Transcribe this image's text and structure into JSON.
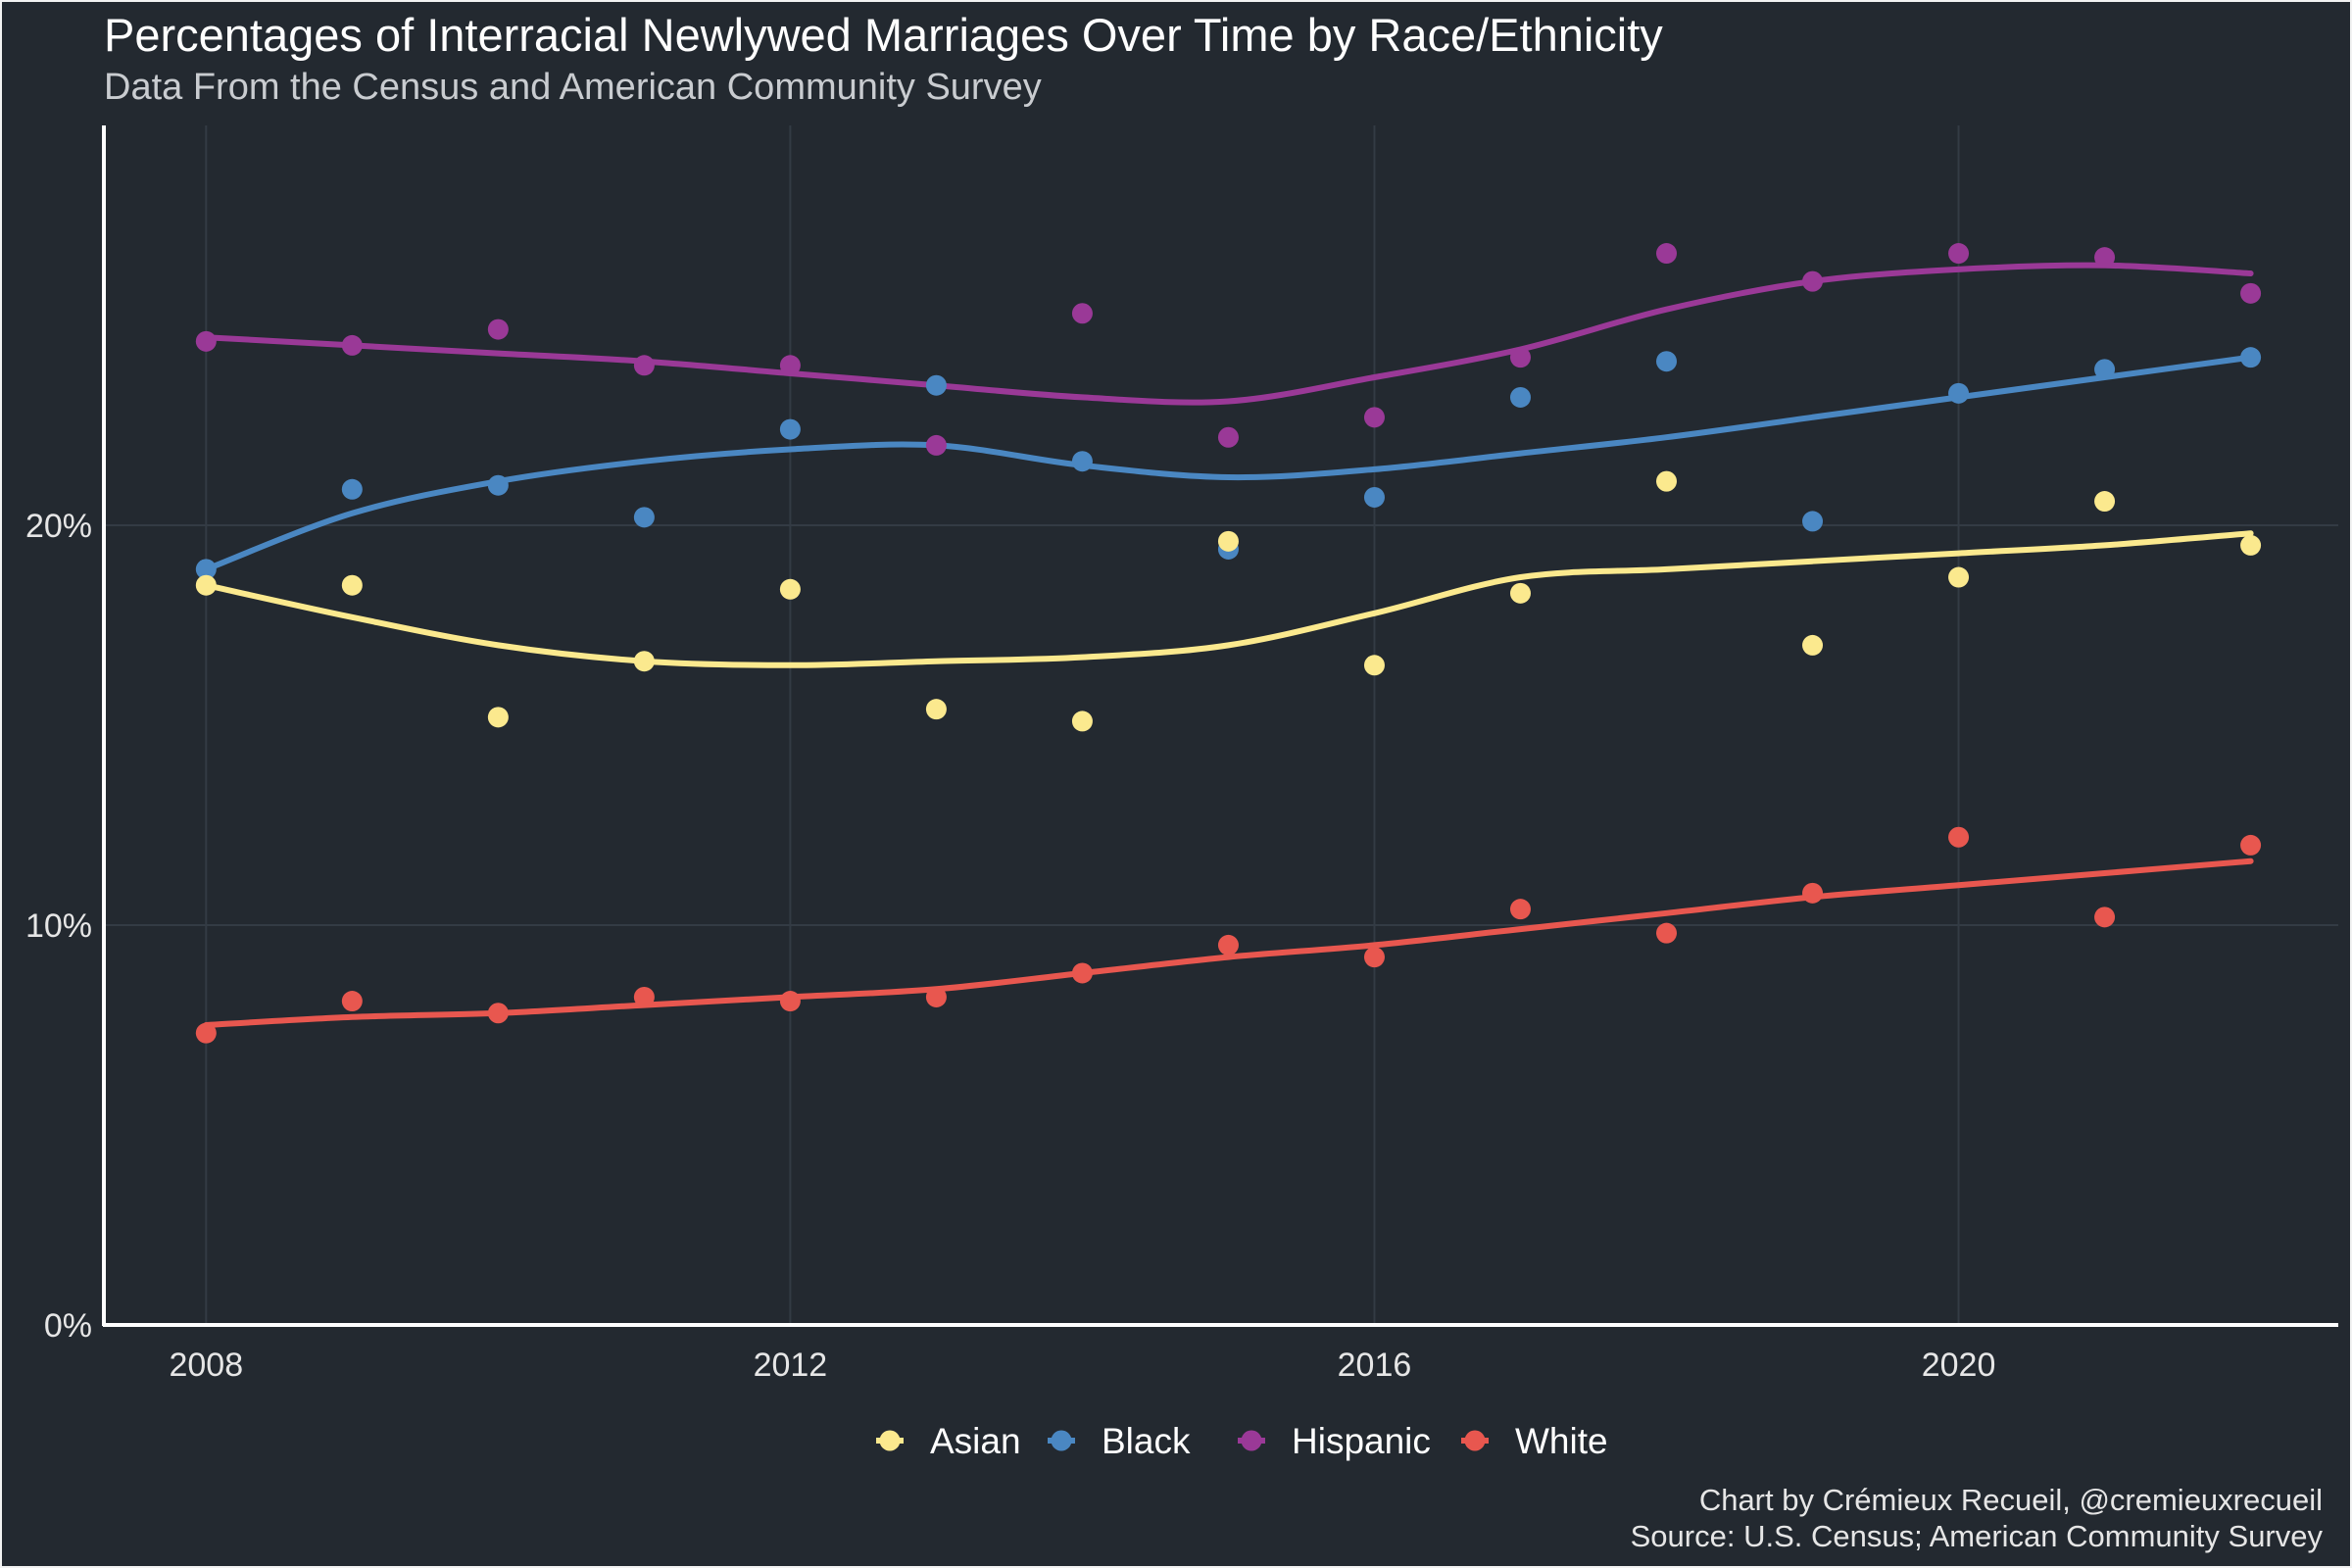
{
  "chart_data": {
    "type": "scatter",
    "title": "Percentages of Interracial Newlywed Marriages Over Time by Race/Ethnicity",
    "subtitle": "Data From the Census and American Community Survey",
    "xlabel": "",
    "ylabel": "",
    "xlim": [
      2007.3,
      2022.6
    ],
    "ylim": [
      0,
      30
    ],
    "x_ticks": [
      2008,
      2012,
      2016,
      2020
    ],
    "y_ticks": [
      0,
      10,
      20
    ],
    "y_tick_labels": [
      "0%",
      "10%",
      "20%"
    ],
    "grid": true,
    "legend_position": "bottom",
    "x": [
      2008,
      2009,
      2010,
      2011,
      2012,
      2013,
      2014,
      2015,
      2016,
      2017,
      2018,
      2019,
      2020,
      2021,
      2022
    ],
    "series": [
      {
        "name": "Asian",
        "color": "#fbe98e",
        "values": [
          18.5,
          18.5,
          15.2,
          16.6,
          18.4,
          15.4,
          15.1,
          19.6,
          16.5,
          18.3,
          21.1,
          17.0,
          18.7,
          20.6,
          19.5
        ],
        "trend": [
          18.5,
          17.7,
          17.0,
          16.6,
          16.5,
          16.6,
          16.7,
          17.0,
          17.8,
          18.7,
          18.9,
          19.1,
          19.3,
          19.5,
          19.8
        ]
      },
      {
        "name": "Black",
        "color": "#4a87c2",
        "values": [
          18.9,
          20.9,
          21.0,
          20.2,
          22.4,
          23.5,
          21.6,
          19.4,
          20.7,
          23.2,
          24.1,
          20.1,
          23.3,
          23.9,
          24.2
        ],
        "trend": [
          18.9,
          20.3,
          21.1,
          21.6,
          21.9,
          22.0,
          21.5,
          21.2,
          21.4,
          21.8,
          22.2,
          22.7,
          23.2,
          23.7,
          24.2
        ]
      },
      {
        "name": "Hispanic",
        "color": "#9a3997",
        "values": [
          24.6,
          24.5,
          24.9,
          24.0,
          24.0,
          22.0,
          25.3,
          22.2,
          22.7,
          24.2,
          26.8,
          26.1,
          26.8,
          26.7,
          25.8
        ],
        "trend": [
          24.7,
          24.5,
          24.3,
          24.1,
          23.8,
          23.5,
          23.2,
          23.1,
          23.7,
          24.4,
          25.4,
          26.1,
          26.4,
          26.5,
          26.3
        ]
      },
      {
        "name": "White",
        "color": "#e8574f",
        "values": [
          7.3,
          8.1,
          7.8,
          8.2,
          8.1,
          8.2,
          8.8,
          9.5,
          9.2,
          10.4,
          9.8,
          10.8,
          12.2,
          10.2,
          12.0
        ],
        "trend": [
          7.5,
          7.7,
          7.8,
          8.0,
          8.2,
          8.4,
          8.8,
          9.2,
          9.5,
          9.9,
          10.3,
          10.7,
          11.0,
          11.3,
          11.6
        ]
      }
    ],
    "annotations": [
      "Chart by Crémieux Recueil, @cremieuxrecueil",
      "Source: U.S. Census; American Community Survey"
    ]
  }
}
